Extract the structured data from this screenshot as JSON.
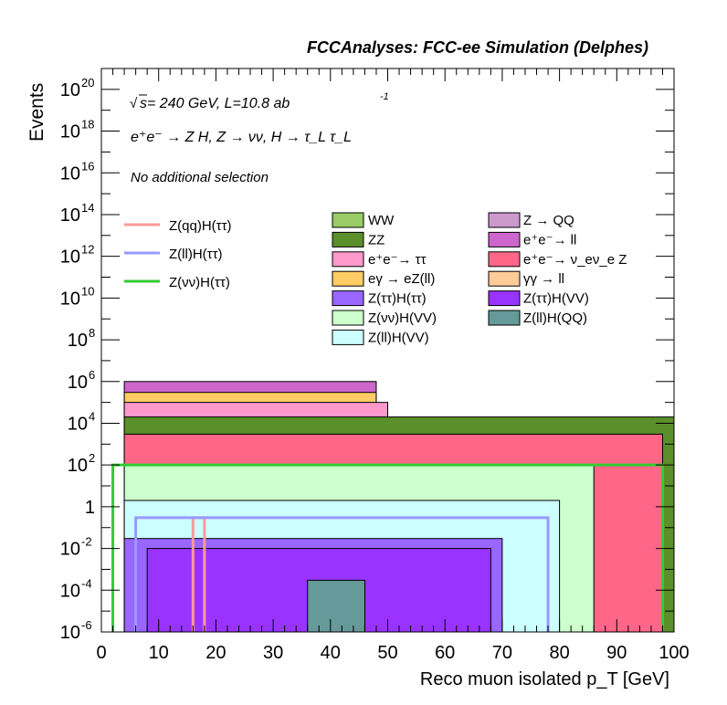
{
  "header": {
    "title": "FCCAnalyses: FCC-ee Simulation (Delphes)",
    "energy_prefix": "s",
    "energy_text": " = 240 GeV, L=10.8 ab",
    "energy_exponent": "-1",
    "process": "e⁺e⁻ → Z H, Z → νν, H → τ_L τ_L",
    "selection": "No additional selection"
  },
  "colors": {
    "WW": "#99cc66",
    "ZZ": "#5a8f29",
    "ee_tautau": "#ff99cc",
    "egamma_eZll": "#ffcc66",
    "Ztautau_Htautau": "#9966ff",
    "Znunu_HVV": "#ccffcc",
    "Zll_HVV": "#ccffff",
    "Z_QQ": "#cc99cc",
    "ee_ll": "#cc66cc",
    "ee_nunuZ": "#ff6688",
    "gammagamma_ll": "#ffcc99",
    "Ztautau_HVV": "#9933ff",
    "Zll_HQQ": "#669999",
    "sig_qq": "#ff9999",
    "sig_ll": "#9999ff",
    "sig_nunu": "#33cc33"
  },
  "chart_data": {
    "type": "histogram",
    "log_y": true,
    "xlabel": "Reco muon isolated p_T [GeV]",
    "ylabel": "Events",
    "xlim": [
      0,
      100
    ],
    "ylim": [
      1e-06,
      1e+21
    ],
    "xticks": [
      "0",
      "10",
      "20",
      "30",
      "40",
      "50",
      "60",
      "70",
      "80",
      "90",
      "100"
    ],
    "yticks": [
      {
        "base": "10",
        "exp": "-6",
        "value": 1e-06
      },
      {
        "base": "10",
        "exp": "-4",
        "value": 0.0001
      },
      {
        "base": "10",
        "exp": "-2",
        "value": 0.01
      },
      {
        "base": "1",
        "exp": "",
        "value": 1
      },
      {
        "base": "10",
        "exp": "2",
        "value": 100.0
      },
      {
        "base": "10",
        "exp": "4",
        "value": 10000.0
      },
      {
        "base": "10",
        "exp": "6",
        "value": 1000000.0
      },
      {
        "base": "10",
        "exp": "8",
        "value": 100000000.0
      },
      {
        "base": "10",
        "exp": "10",
        "value": 10000000000.0
      },
      {
        "base": "10",
        "exp": "12",
        "value": 1000000000000.0
      },
      {
        "base": "10",
        "exp": "14",
        "value": 100000000000000.0
      },
      {
        "base": "10",
        "exp": "16",
        "value": 1e+16
      },
      {
        "base": "10",
        "exp": "18",
        "value": 1e+18
      },
      {
        "base": "10",
        "exp": "20",
        "value": 1e+20
      }
    ],
    "stack_boundaries": [
      {
        "label": "Z(ll)H(QQ)",
        "key": "Zll_HQQ",
        "x_min": 36,
        "x_max": 46,
        "level": 0.0003
      },
      {
        "label": "Z(ττ)H(VV)",
        "key": "Ztautau_HVV",
        "x_min": 8,
        "x_max": 68,
        "level": 0.01
      },
      {
        "label": "Z(ττ)H(ττ)",
        "key": "Ztautau_Htautau",
        "x_min": 4,
        "x_max": 70,
        "level": 0.03
      },
      {
        "label": "Z(ll)H(VV)",
        "key": "Zll_HVV",
        "x_min": 4,
        "x_max": 80,
        "level": 2
      },
      {
        "label": "Z(νν)H(VV)",
        "key": "Znunu_HVV",
        "x_min": 4,
        "x_max": 86,
        "level": 100
      },
      {
        "label": "e⁺e⁻→ ν_eν_e Z",
        "key": "ee_nunuZ",
        "x_min": 4,
        "x_max": 98,
        "level": 3000
      },
      {
        "label": "ZZ",
        "key": "ZZ",
        "x_min": 4,
        "x_max": 100,
        "level": 20000
      },
      {
        "label": "e⁺e⁻→ ττ",
        "key": "ee_tautau",
        "x_min": 4,
        "x_max": 50,
        "level": 100000
      },
      {
        "label": "eγ → eZ(ll)",
        "key": "egamma_eZll",
        "x_min": 4,
        "x_max": 48,
        "level": 300000
      },
      {
        "label": "e⁺e⁻→ ll",
        "key": "ee_ll",
        "x_min": 4,
        "x_max": 48,
        "level": 1000000
      }
    ],
    "series": [
      {
        "name": "Z(qq)H(ττ)",
        "key": "sig_qq",
        "x_min": 16,
        "x_max": 18,
        "level": 0.3
      },
      {
        "name": "Z(ll)H(ττ)",
        "key": "sig_ll",
        "x_min": 6,
        "x_max": 78,
        "level": 0.3
      },
      {
        "name": "Z(νν)H(ττ)",
        "key": "sig_nunu",
        "x_min": 2,
        "x_max": 98,
        "level": 100
      }
    ]
  },
  "legend_left": [
    {
      "label": "Z(qq)H(ττ)",
      "key": "sig_qq"
    },
    {
      "label": "Z(ll)H(ττ)",
      "key": "sig_ll"
    },
    {
      "label": "Z(νν)H(ττ)",
      "key": "sig_nunu"
    }
  ],
  "legend_mid": [
    {
      "label": "WW",
      "key": "WW"
    },
    {
      "label": "ZZ",
      "key": "ZZ"
    },
    {
      "label": "e⁺e⁻→ ττ",
      "key": "ee_tautau"
    },
    {
      "label": "eγ → eZ(ll)",
      "key": "egamma_eZll"
    },
    {
      "label": "Z(ττ)H(ττ)",
      "key": "Ztautau_Htautau"
    },
    {
      "label": "Z(νν)H(VV)",
      "key": "Znunu_HVV"
    },
    {
      "label": "Z(ll)H(VV)",
      "key": "Zll_HVV"
    }
  ],
  "legend_right": [
    {
      "label": "Z → QQ",
      "key": "Z_QQ"
    },
    {
      "label": "e⁺e⁻→ ll",
      "key": "ee_ll"
    },
    {
      "label": "e⁺e⁻→ ν_eν_e Z",
      "key": "ee_nunuZ"
    },
    {
      "label": "γγ → ll",
      "key": "gammagamma_ll"
    },
    {
      "label": "Z(ττ)H(VV)",
      "key": "Ztautau_HVV"
    },
    {
      "label": "Z(ll)H(QQ)",
      "key": "Zll_HQQ"
    }
  ]
}
